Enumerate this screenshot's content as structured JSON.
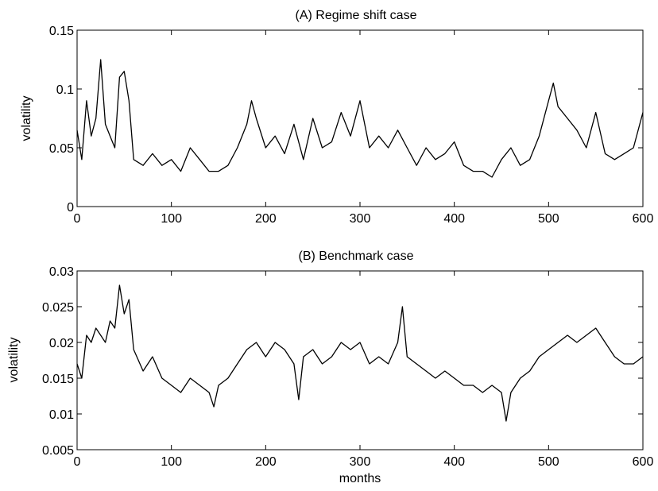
{
  "chart_data": [
    {
      "type": "line",
      "title": "(A) Regime shift case",
      "xlabel": "",
      "ylabel": "volatility",
      "xlim": [
        0,
        600
      ],
      "ylim": [
        0,
        0.15
      ],
      "xticks": [
        0,
        100,
        200,
        300,
        400,
        500,
        600
      ],
      "xtick_labels": [
        "0",
        "100",
        "200",
        "300",
        "400",
        "500",
        "600"
      ],
      "yticks": [
        0,
        0.05,
        0.1,
        0.15
      ],
      "ytick_labels": [
        "0",
        "0.05",
        "0.1",
        "0.15"
      ],
      "line_color": "#000000",
      "grid": false,
      "series": [
        {
          "x": [
            0,
            5,
            10,
            15,
            20,
            25,
            30,
            35,
            40,
            45,
            50,
            55,
            60,
            70,
            80,
            90,
            100,
            110,
            120,
            130,
            140,
            150,
            160,
            170,
            180,
            185,
            190,
            200,
            210,
            220,
            230,
            240,
            250,
            260,
            270,
            280,
            290,
            300,
            310,
            320,
            330,
            340,
            350,
            360,
            370,
            380,
            390,
            400,
            410,
            420,
            430,
            440,
            450,
            460,
            470,
            480,
            490,
            500,
            505,
            510,
            520,
            530,
            540,
            550,
            560,
            570,
            580,
            590,
            600
          ],
          "y": [
            0.065,
            0.04,
            0.09,
            0.06,
            0.075,
            0.125,
            0.07,
            0.06,
            0.05,
            0.11,
            0.115,
            0.09,
            0.04,
            0.035,
            0.045,
            0.035,
            0.04,
            0.03,
            0.05,
            0.04,
            0.03,
            0.03,
            0.035,
            0.05,
            0.07,
            0.09,
            0.075,
            0.05,
            0.06,
            0.045,
            0.07,
            0.04,
            0.075,
            0.05,
            0.055,
            0.08,
            0.06,
            0.09,
            0.05,
            0.06,
            0.05,
            0.065,
            0.05,
            0.035,
            0.05,
            0.04,
            0.045,
            0.055,
            0.035,
            0.03,
            0.03,
            0.025,
            0.04,
            0.05,
            0.035,
            0.04,
            0.06,
            0.09,
            0.105,
            0.085,
            0.075,
            0.065,
            0.05,
            0.08,
            0.045,
            0.04,
            0.045,
            0.05,
            0.08
          ]
        }
      ]
    },
    {
      "type": "line",
      "title": "(B) Benchmark case",
      "xlabel": "months",
      "ylabel": "volatility",
      "xlim": [
        0,
        600
      ],
      "ylim": [
        0.005,
        0.03
      ],
      "xticks": [
        0,
        100,
        200,
        300,
        400,
        500,
        600
      ],
      "xtick_labels": [
        "0",
        "100",
        "200",
        "300",
        "400",
        "500",
        "600"
      ],
      "yticks": [
        0.005,
        0.01,
        0.015,
        0.02,
        0.025,
        0.03
      ],
      "ytick_labels": [
        "0.005",
        "0.01",
        "0.015",
        "0.02",
        "0.025",
        "0.03"
      ],
      "line_color": "#000000",
      "grid": false,
      "series": [
        {
          "x": [
            0,
            5,
            10,
            15,
            20,
            25,
            30,
            35,
            40,
            45,
            50,
            55,
            60,
            70,
            80,
            90,
            100,
            110,
            120,
            130,
            140,
            145,
            150,
            160,
            170,
            180,
            190,
            200,
            210,
            220,
            230,
            235,
            240,
            250,
            260,
            270,
            280,
            290,
            300,
            310,
            320,
            330,
            340,
            345,
            350,
            360,
            370,
            380,
            390,
            400,
            410,
            420,
            430,
            440,
            450,
            455,
            460,
            470,
            480,
            490,
            500,
            510,
            520,
            530,
            540,
            550,
            560,
            570,
            580,
            590,
            600
          ],
          "y": [
            0.017,
            0.015,
            0.021,
            0.02,
            0.022,
            0.021,
            0.02,
            0.023,
            0.022,
            0.028,
            0.024,
            0.026,
            0.019,
            0.016,
            0.018,
            0.015,
            0.014,
            0.013,
            0.015,
            0.014,
            0.013,
            0.011,
            0.014,
            0.015,
            0.017,
            0.019,
            0.02,
            0.018,
            0.02,
            0.019,
            0.017,
            0.012,
            0.018,
            0.019,
            0.017,
            0.018,
            0.02,
            0.019,
            0.02,
            0.017,
            0.018,
            0.017,
            0.02,
            0.025,
            0.018,
            0.017,
            0.016,
            0.015,
            0.016,
            0.015,
            0.014,
            0.014,
            0.013,
            0.014,
            0.013,
            0.009,
            0.013,
            0.015,
            0.016,
            0.018,
            0.019,
            0.02,
            0.021,
            0.02,
            0.021,
            0.022,
            0.02,
            0.018,
            0.017,
            0.017,
            0.018
          ]
        }
      ]
    }
  ]
}
